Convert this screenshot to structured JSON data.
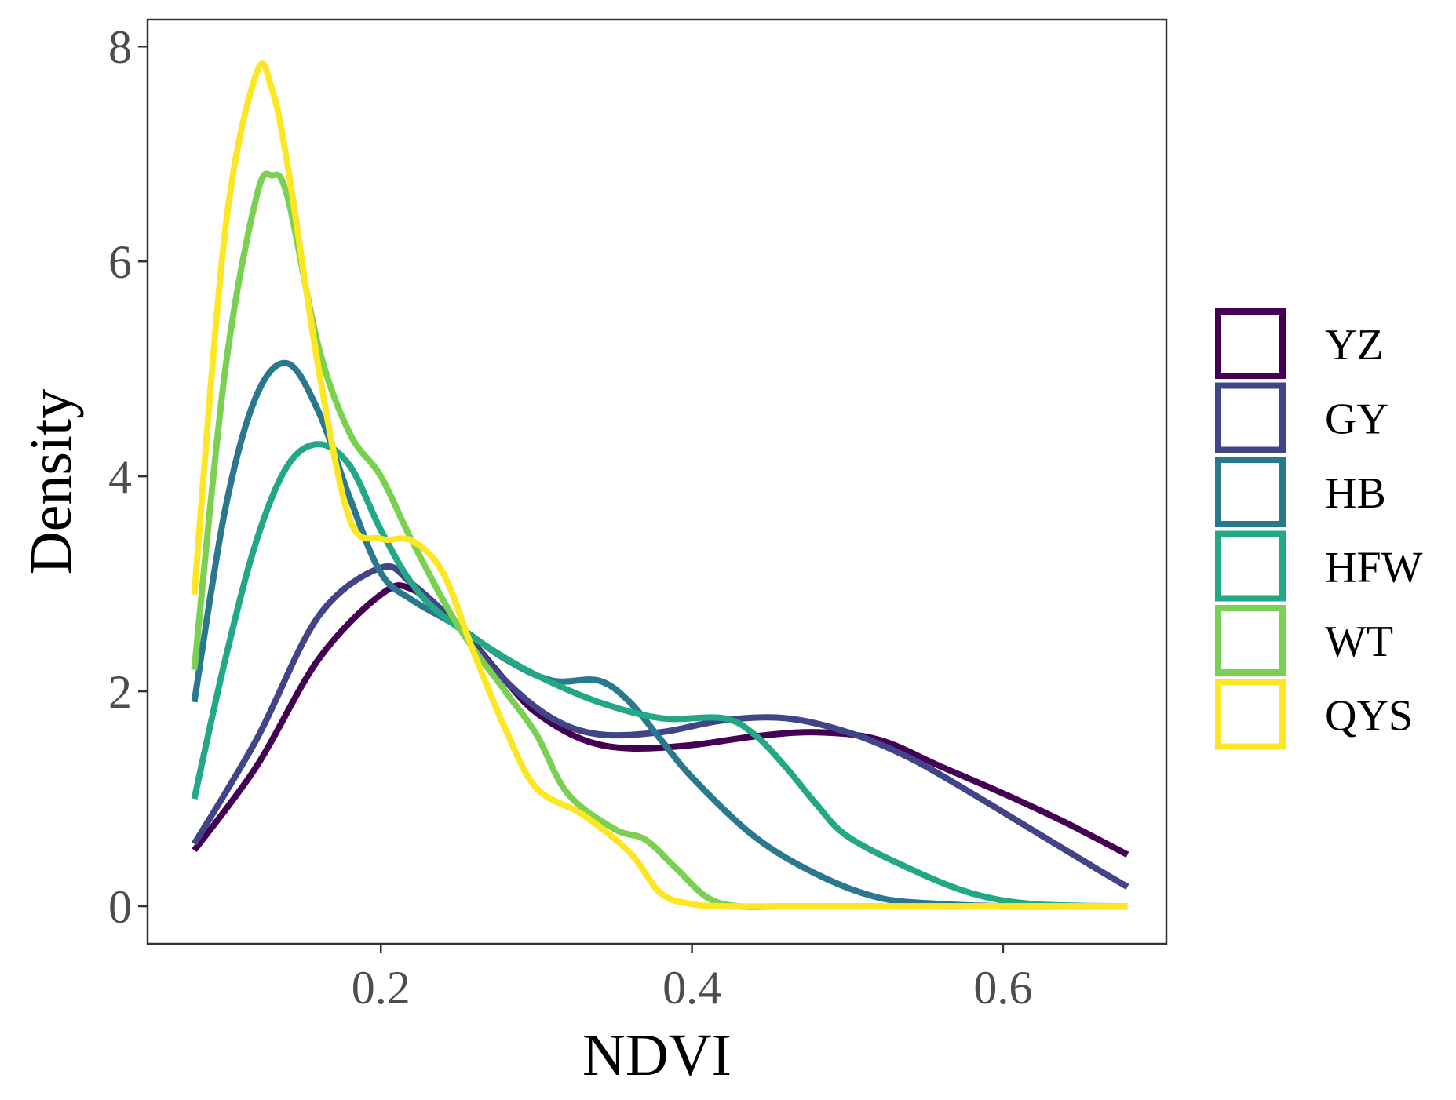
{
  "chart_data": {
    "type": "line",
    "title": "",
    "xlabel": "NDVI",
    "ylabel": "Density",
    "xlim": [
      0.05,
      0.705
    ],
    "ylim": [
      -0.35,
      8.25
    ],
    "xticks": [
      0.2,
      0.4,
      0.6
    ],
    "xtick_labels": [
      "0.2",
      "0.4",
      "0.6"
    ],
    "yticks": [
      0,
      2,
      4,
      6,
      8
    ],
    "ytick_labels": [
      "0",
      "2",
      "4",
      "6",
      "8"
    ],
    "grid": false,
    "legend_position": "right",
    "series": [
      {
        "name": "YZ",
        "color": "#440154",
        "x": [
          0.08,
          0.12,
          0.16,
          0.2,
          0.22,
          0.25,
          0.28,
          0.3,
          0.33,
          0.36,
          0.4,
          0.44,
          0.48,
          0.52,
          0.56,
          0.6,
          0.64,
          0.68
        ],
        "y": [
          0.52,
          1.3,
          2.3,
          2.9,
          2.95,
          2.6,
          2.1,
          1.8,
          1.55,
          1.47,
          1.5,
          1.58,
          1.62,
          1.55,
          1.3,
          1.05,
          0.78,
          0.48
        ]
      },
      {
        "name": "GY",
        "color": "#414487",
        "x": [
          0.08,
          0.12,
          0.16,
          0.2,
          0.22,
          0.25,
          0.28,
          0.31,
          0.34,
          0.38,
          0.42,
          0.46,
          0.5,
          0.54,
          0.58,
          0.62,
          0.66,
          0.68
        ],
        "y": [
          0.58,
          1.55,
          2.7,
          3.15,
          3.0,
          2.6,
          2.1,
          1.75,
          1.6,
          1.62,
          1.73,
          1.75,
          1.62,
          1.38,
          1.05,
          0.7,
          0.35,
          0.18
        ]
      },
      {
        "name": "HB",
        "color": "#2A788E",
        "x": [
          0.08,
          0.1,
          0.12,
          0.14,
          0.16,
          0.18,
          0.2,
          0.22,
          0.25,
          0.28,
          0.31,
          0.34,
          0.36,
          0.38,
          0.4,
          0.44,
          0.48,
          0.52,
          0.56,
          0.6,
          0.64,
          0.68
        ],
        "y": [
          1.9,
          3.7,
          4.75,
          5.05,
          4.6,
          3.8,
          3.1,
          2.85,
          2.6,
          2.3,
          2.1,
          2.1,
          1.9,
          1.55,
          1.2,
          0.65,
          0.3,
          0.08,
          0.02,
          0.0,
          0.0,
          0.0
        ]
      },
      {
        "name": "HFW",
        "color": "#22A884",
        "x": [
          0.08,
          0.1,
          0.12,
          0.14,
          0.16,
          0.18,
          0.2,
          0.22,
          0.24,
          0.27,
          0.3,
          0.34,
          0.38,
          0.42,
          0.44,
          0.46,
          0.48,
          0.5,
          0.54,
          0.58,
          0.62,
          0.68
        ],
        "y": [
          1.0,
          2.3,
          3.4,
          4.1,
          4.3,
          4.1,
          3.5,
          3.0,
          2.7,
          2.4,
          2.15,
          1.9,
          1.75,
          1.75,
          1.6,
          1.3,
          0.95,
          0.65,
          0.35,
          0.12,
          0.02,
          0.0
        ]
      },
      {
        "name": "WT",
        "color": "#7AD151",
        "x": [
          0.08,
          0.1,
          0.12,
          0.13,
          0.14,
          0.16,
          0.18,
          0.2,
          0.22,
          0.25,
          0.28,
          0.3,
          0.32,
          0.35,
          0.37,
          0.39,
          0.41,
          0.43,
          0.46,
          0.5,
          0.6,
          0.68
        ],
        "y": [
          2.2,
          5.0,
          6.6,
          6.8,
          6.6,
          5.2,
          4.4,
          4.0,
          3.4,
          2.6,
          2.0,
          1.6,
          1.05,
          0.72,
          0.62,
          0.35,
          0.08,
          0.0,
          0.0,
          0.0,
          0.0,
          0.0
        ]
      },
      {
        "name": "QYS",
        "color": "#FDE725",
        "x": [
          0.08,
          0.1,
          0.12,
          0.13,
          0.14,
          0.16,
          0.18,
          0.2,
          0.22,
          0.24,
          0.26,
          0.28,
          0.3,
          0.33,
          0.36,
          0.38,
          0.4,
          0.42,
          0.46,
          0.5,
          0.6,
          0.68
        ],
        "y": [
          2.9,
          6.3,
          7.75,
          7.6,
          6.9,
          5.0,
          3.6,
          3.42,
          3.4,
          3.1,
          2.35,
          1.65,
          1.1,
          0.85,
          0.5,
          0.12,
          0.02,
          0.0,
          0.0,
          0.0,
          0.0,
          0.0
        ]
      }
    ]
  }
}
